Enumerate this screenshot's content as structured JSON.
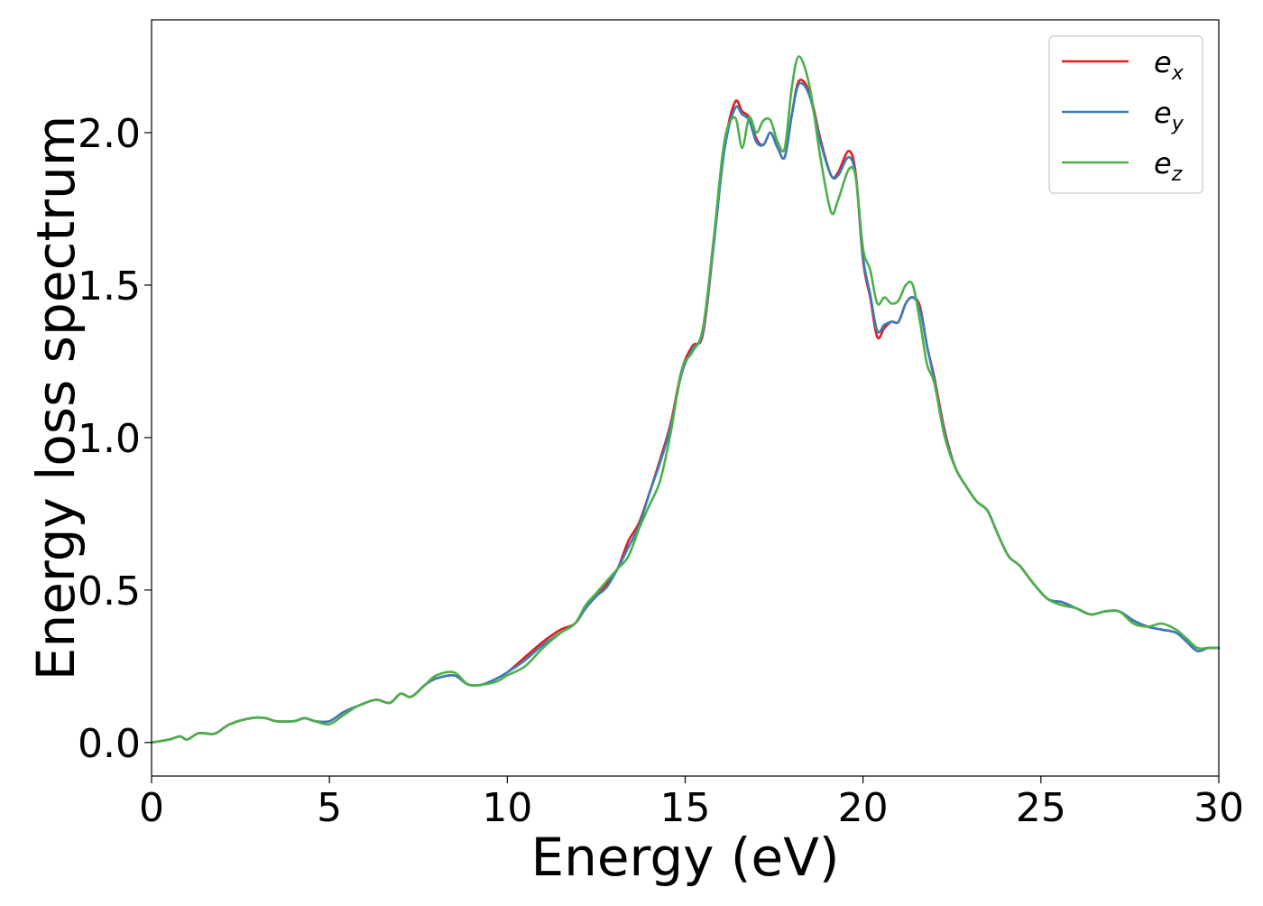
{
  "chart_data": {
    "type": "line",
    "title": "",
    "xlabel": "Energy (eV)",
    "ylabel": "Energy loss spectrum",
    "xlim": [
      0,
      30
    ],
    "ylim": [
      -0.11,
      2.37
    ],
    "xticks": [
      0,
      5,
      10,
      15,
      20,
      25,
      30
    ],
    "xtick_labels": [
      "0",
      "5",
      "10",
      "15",
      "20",
      "25",
      "30"
    ],
    "yticks": [
      0.0,
      0.5,
      1.0,
      1.5,
      2.0
    ],
    "ytick_labels": [
      "0.0",
      "0.5",
      "1.0",
      "1.5",
      "2.0"
    ],
    "grid": false,
    "legend_position": "top-right",
    "x": [
      0,
      0.5,
      0.8,
      1.0,
      1.3,
      1.5,
      1.8,
      2.2,
      2.8,
      3.2,
      3.5,
      4.0,
      4.3,
      4.6,
      5.0,
      5.4,
      5.8,
      6.3,
      6.7,
      7.0,
      7.3,
      7.7,
      8.0,
      8.5,
      8.9,
      9.3,
      9.7,
      10.0,
      10.5,
      11.0,
      11.5,
      11.9,
      12.2,
      12.5,
      12.8,
      13.1,
      13.4,
      13.7,
      14.0,
      14.3,
      14.6,
      14.9,
      15.2,
      15.5,
      15.8,
      16.1,
      16.4,
      16.6,
      16.8,
      17.0,
      17.2,
      17.4,
      17.6,
      17.8,
      18.0,
      18.2,
      18.5,
      18.8,
      19.1,
      19.3,
      19.6,
      19.8,
      20.0,
      20.2,
      20.4,
      20.6,
      20.8,
      21.0,
      21.2,
      21.4,
      21.6,
      21.8,
      22.0,
      22.3,
      22.6,
      22.9,
      23.2,
      23.5,
      23.8,
      24.1,
      24.4,
      24.8,
      25.2,
      25.6,
      26.0,
      26.4,
      26.8,
      27.2,
      27.6,
      28.0,
      28.4,
      28.8,
      29.1,
      29.4,
      29.7,
      30.0
    ],
    "series": [
      {
        "name": "e_x",
        "color": "#e41a1c",
        "values": [
          0.0,
          0.01,
          0.02,
          0.01,
          0.03,
          0.03,
          0.03,
          0.06,
          0.08,
          0.08,
          0.07,
          0.07,
          0.08,
          0.07,
          0.07,
          0.1,
          0.12,
          0.14,
          0.13,
          0.16,
          0.15,
          0.19,
          0.21,
          0.22,
          0.19,
          0.19,
          0.21,
          0.23,
          0.28,
          0.33,
          0.37,
          0.39,
          0.44,
          0.48,
          0.52,
          0.57,
          0.66,
          0.72,
          0.82,
          0.93,
          1.05,
          1.22,
          1.3,
          1.34,
          1.63,
          1.95,
          2.1,
          2.07,
          2.05,
          1.98,
          1.96,
          2.0,
          1.95,
          1.92,
          2.06,
          2.17,
          2.13,
          1.98,
          1.86,
          1.87,
          1.94,
          1.86,
          1.58,
          1.46,
          1.33,
          1.36,
          1.38,
          1.38,
          1.44,
          1.46,
          1.43,
          1.3,
          1.2,
          1.02,
          0.9,
          0.84,
          0.79,
          0.76,
          0.68,
          0.61,
          0.58,
          0.52,
          0.47,
          0.46,
          0.44,
          0.42,
          0.43,
          0.43,
          0.4,
          0.38,
          0.37,
          0.36,
          0.33,
          0.3,
          0.31,
          0.31
        ]
      },
      {
        "name": "e_y",
        "color": "#377eb8",
        "values": [
          0.0,
          0.01,
          0.02,
          0.01,
          0.03,
          0.03,
          0.03,
          0.06,
          0.08,
          0.08,
          0.07,
          0.07,
          0.08,
          0.07,
          0.07,
          0.1,
          0.12,
          0.14,
          0.13,
          0.16,
          0.15,
          0.19,
          0.21,
          0.22,
          0.19,
          0.19,
          0.21,
          0.23,
          0.27,
          0.32,
          0.36,
          0.39,
          0.44,
          0.48,
          0.51,
          0.57,
          0.64,
          0.71,
          0.82,
          0.92,
          1.04,
          1.21,
          1.29,
          1.35,
          1.63,
          1.94,
          2.08,
          2.06,
          2.04,
          1.97,
          1.96,
          2.0,
          1.95,
          1.92,
          2.06,
          2.16,
          2.12,
          1.97,
          1.86,
          1.86,
          1.92,
          1.85,
          1.59,
          1.47,
          1.35,
          1.37,
          1.38,
          1.38,
          1.44,
          1.46,
          1.42,
          1.3,
          1.19,
          1.01,
          0.9,
          0.84,
          0.79,
          0.76,
          0.68,
          0.61,
          0.58,
          0.52,
          0.47,
          0.46,
          0.44,
          0.42,
          0.43,
          0.43,
          0.4,
          0.38,
          0.37,
          0.36,
          0.33,
          0.3,
          0.31,
          0.31
        ]
      },
      {
        "name": "e_z",
        "color": "#4daf4a",
        "values": [
          0.0,
          0.01,
          0.02,
          0.01,
          0.03,
          0.03,
          0.03,
          0.06,
          0.08,
          0.08,
          0.07,
          0.07,
          0.08,
          0.07,
          0.06,
          0.09,
          0.12,
          0.14,
          0.13,
          0.16,
          0.15,
          0.19,
          0.22,
          0.23,
          0.19,
          0.19,
          0.2,
          0.22,
          0.25,
          0.31,
          0.36,
          0.39,
          0.45,
          0.49,
          0.53,
          0.57,
          0.61,
          0.7,
          0.78,
          0.86,
          1.02,
          1.22,
          1.28,
          1.36,
          1.65,
          1.97,
          2.05,
          1.95,
          2.05,
          2.0,
          2.04,
          2.04,
          1.97,
          1.95,
          2.15,
          2.25,
          2.15,
          1.92,
          1.74,
          1.78,
          1.88,
          1.85,
          1.62,
          1.55,
          1.44,
          1.46,
          1.44,
          1.45,
          1.5,
          1.5,
          1.38,
          1.24,
          1.18,
          1.0,
          0.9,
          0.84,
          0.79,
          0.76,
          0.68,
          0.61,
          0.58,
          0.52,
          0.47,
          0.45,
          0.44,
          0.42,
          0.43,
          0.43,
          0.39,
          0.38,
          0.39,
          0.37,
          0.34,
          0.31,
          0.31,
          0.31
        ]
      }
    ]
  },
  "legend": {
    "items": [
      {
        "base": "e",
        "sub": "x"
      },
      {
        "base": "e",
        "sub": "y"
      },
      {
        "base": "e",
        "sub": "z"
      }
    ]
  }
}
